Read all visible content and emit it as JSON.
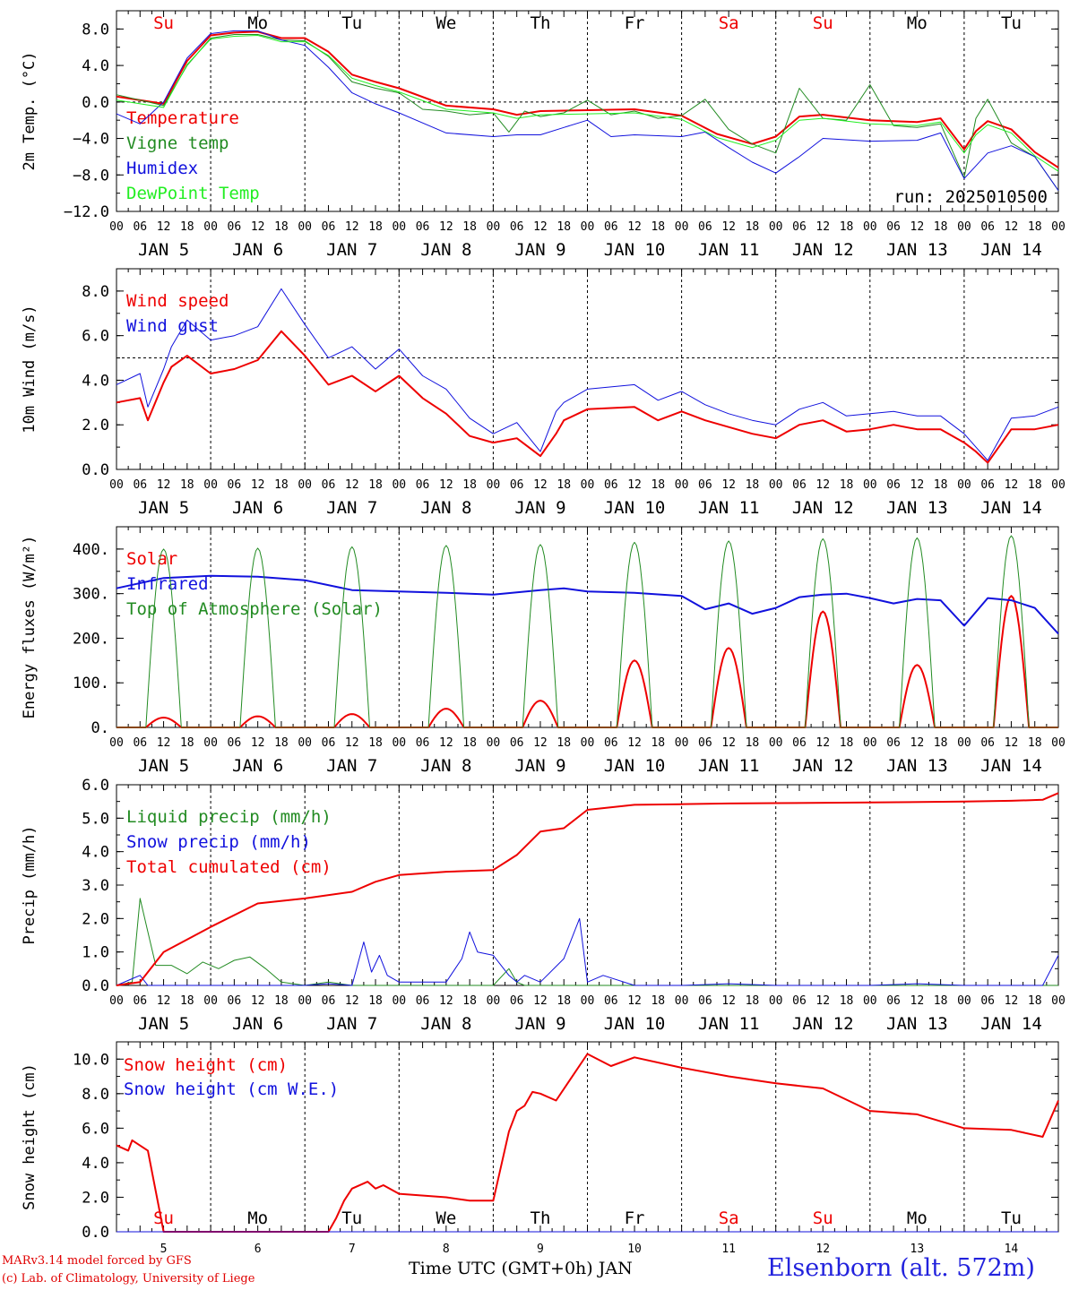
{
  "colors": {
    "red": "#ee0000",
    "green": "#228b22",
    "blue": "#1111dd",
    "lightgreen": "#22ee22",
    "weekend": "#ee0000",
    "weekday": "#000000"
  },
  "days": [
    {
      "abbr": "Su",
      "weekend": true,
      "date": "JAN  5",
      "num": "5"
    },
    {
      "abbr": "Mo",
      "weekend": false,
      "date": "JAN  6",
      "num": "6"
    },
    {
      "abbr": "Tu",
      "weekend": false,
      "date": "JAN  7",
      "num": "7"
    },
    {
      "abbr": "We",
      "weekend": false,
      "date": "JAN  8",
      "num": "8"
    },
    {
      "abbr": "Th",
      "weekend": false,
      "date": "JAN  9",
      "num": "9"
    },
    {
      "abbr": "Fr",
      "weekend": false,
      "date": "JAN 10",
      "num": "10"
    },
    {
      "abbr": "Sa",
      "weekend": true,
      "date": "JAN 11",
      "num": "11"
    },
    {
      "abbr": "Su",
      "weekend": true,
      "date": "JAN 12",
      "num": "12"
    },
    {
      "abbr": "Mo",
      "weekend": false,
      "date": "JAN 13",
      "num": "13"
    },
    {
      "abbr": "Tu",
      "weekend": false,
      "date": "JAN 14",
      "num": "14"
    }
  ],
  "hour_labels": [
    "00",
    "06",
    "12",
    "18"
  ],
  "footer": {
    "credit_line1": "MARv3.14 model forced by GFS",
    "credit_line2": "(c) Lab. of Climatology, University of Liege",
    "x_title": "Time UTC (GMT+0h) JAN",
    "station": "Elsenborn (alt. 572m)"
  },
  "chart_data": [
    {
      "type": "line",
      "ylabel": "2m Temp. (°C)",
      "ylim": [
        -12,
        10
      ],
      "yticks": [
        8,
        4,
        0,
        -4,
        -8,
        -12
      ],
      "ytick_labels": [
        "8.0",
        "4.0",
        "0.0",
        "−4.0",
        "−8.0",
        "−12.0"
      ],
      "ref_line": 0,
      "annotation": "run: 2025010500",
      "series": [
        {
          "name": "Temperature",
          "color": "red",
          "width": 2,
          "x": [
            0,
            12,
            18,
            24,
            30,
            36,
            42,
            48,
            54,
            60,
            66,
            72,
            84,
            96,
            102,
            108,
            120,
            132,
            144,
            153,
            162,
            168,
            174,
            180,
            192,
            204,
            210,
            216,
            219,
            222,
            228,
            234,
            240
          ],
          "y": [
            0.6,
            -0.2,
            4.5,
            7.3,
            7.6,
            7.7,
            7.0,
            7.0,
            5.5,
            3.0,
            2.2,
            1.5,
            -0.4,
            -0.8,
            -1.4,
            -1.0,
            -0.9,
            -0.8,
            -1.5,
            -3.5,
            -4.6,
            -3.8,
            -1.6,
            -1.4,
            -2.0,
            -2.2,
            -1.8,
            -5.2,
            -3.2,
            -2.1,
            -3.0,
            -5.5,
            -7.2
          ]
        },
        {
          "name": "Vigne temp",
          "color": "green",
          "width": 1,
          "x": [
            0,
            12,
            18,
            24,
            30,
            36,
            42,
            48,
            54,
            60,
            66,
            72,
            78,
            84,
            90,
            96,
            100,
            104,
            108,
            114,
            120,
            126,
            132,
            138,
            144,
            150,
            156,
            162,
            168,
            174,
            180,
            186,
            192,
            198,
            204,
            210,
            216,
            219,
            222,
            228,
            234,
            240
          ],
          "y": [
            0.8,
            -0.4,
            4.0,
            7.0,
            7.4,
            7.4,
            6.8,
            6.7,
            5.0,
            2.2,
            1.5,
            1.0,
            -0.8,
            -1.0,
            -1.4,
            -1.2,
            -3.3,
            -1.0,
            -1.6,
            -1.2,
            0.2,
            -1.4,
            -1.0,
            -1.8,
            -1.5,
            0.3,
            -3.0,
            -4.6,
            -5.6,
            1.5,
            -1.8,
            -2.0,
            1.9,
            -2.6,
            -2.8,
            -2.4,
            -8.3,
            -1.8,
            0.3,
            -4.5,
            -6.0,
            -9.7
          ]
        },
        {
          "name": "Humidex",
          "color": "blue",
          "width": 1,
          "x": [
            0,
            6,
            12,
            18,
            24,
            30,
            36,
            42,
            48,
            54,
            60,
            66,
            72,
            84,
            96,
            102,
            108,
            114,
            120,
            126,
            132,
            144,
            150,
            156,
            162,
            168,
            174,
            180,
            192,
            204,
            210,
            216,
            222,
            228,
            234,
            240
          ],
          "y": [
            -1.3,
            -2.4,
            0.0,
            4.8,
            7.5,
            7.8,
            7.8,
            6.8,
            6.2,
            3.8,
            1.0,
            -0.2,
            -1.2,
            -3.4,
            -3.8,
            -3.6,
            -3.6,
            -2.8,
            -2.0,
            -3.8,
            -3.6,
            -3.8,
            -3.3,
            -5.0,
            -6.6,
            -7.8,
            -6.0,
            -4.0,
            -4.3,
            -4.2,
            -3.4,
            -8.4,
            -5.6,
            -4.8,
            -6.0,
            -9.7
          ]
        }
      ]
    },
    {
      "type": "line",
      "ylabel": "10m Wind (m/s)",
      "ylim": [
        0,
        9.0
      ],
      "yticks": [
        8,
        6,
        4,
        2,
        0
      ],
      "ytick_labels": [
        "8.0",
        "6.0",
        "4.0",
        "2.0",
        "0.0"
      ],
      "ref_line": 5,
      "series": [
        {
          "name": "Wind speed",
          "color": "red",
          "width": 2,
          "x": [
            0,
            6,
            8,
            12,
            14,
            18,
            24,
            30,
            36,
            42,
            48,
            54,
            60,
            66,
            72,
            78,
            84,
            90,
            96,
            102,
            108,
            112,
            114,
            120,
            132,
            138,
            144,
            150,
            156,
            162,
            168,
            174,
            180,
            186,
            192,
            198,
            204,
            210,
            216,
            219,
            222,
            228,
            234,
            240
          ],
          "y": [
            3.0,
            3.2,
            2.2,
            3.9,
            4.6,
            5.1,
            4.3,
            4.5,
            4.9,
            6.2,
            5.1,
            3.8,
            4.2,
            3.5,
            4.2,
            3.2,
            2.5,
            1.5,
            1.2,
            1.4,
            0.6,
            1.6,
            2.2,
            2.7,
            2.8,
            2.2,
            2.6,
            2.2,
            1.9,
            1.6,
            1.4,
            2.0,
            2.2,
            1.7,
            1.8,
            2.0,
            1.8,
            1.8,
            1.2,
            0.8,
            0.3,
            1.8,
            1.8,
            2.0
          ]
        },
        {
          "name": "Wind gust",
          "color": "blue",
          "width": 1,
          "x": [
            0,
            6,
            8,
            12,
            14,
            18,
            24,
            30,
            36,
            42,
            48,
            54,
            60,
            66,
            72,
            78,
            84,
            90,
            96,
            102,
            108,
            112,
            114,
            120,
            132,
            138,
            144,
            150,
            156,
            162,
            168,
            174,
            180,
            186,
            192,
            198,
            204,
            210,
            216,
            219,
            222,
            228,
            234,
            240
          ],
          "y": [
            3.8,
            4.3,
            2.8,
            4.5,
            5.5,
            6.7,
            5.8,
            6.0,
            6.4,
            8.1,
            6.5,
            5.0,
            5.5,
            4.5,
            5.4,
            4.2,
            3.6,
            2.3,
            1.6,
            2.1,
            0.8,
            2.6,
            3.0,
            3.6,
            3.8,
            3.1,
            3.5,
            2.9,
            2.5,
            2.2,
            2.0,
            2.7,
            3.0,
            2.4,
            2.5,
            2.6,
            2.4,
            2.4,
            1.6,
            1.0,
            0.4,
            2.3,
            2.4,
            2.8
          ]
        }
      ]
    },
    {
      "type": "line",
      "ylabel": "Energy fluxes (W/m²)",
      "ylim": [
        0,
        450
      ],
      "yticks": [
        400,
        300,
        200,
        100,
        0
      ],
      "ytick_labels": [
        "400.",
        "300.",
        "200.",
        "100.",
        "0."
      ],
      "series": [
        {
          "name": "Solar",
          "color": "red",
          "width": 2,
          "peaks": [
            22,
            25,
            30,
            42,
            60,
            150,
            178,
            260,
            140,
            295
          ]
        },
        {
          "name": "Infrared",
          "color": "blue",
          "width": 2,
          "x": [
            0,
            12,
            24,
            36,
            48,
            60,
            72,
            84,
            96,
            108,
            114,
            120,
            132,
            144,
            150,
            156,
            162,
            168,
            174,
            180,
            186,
            192,
            198,
            204,
            210,
            216,
            222,
            228,
            234,
            240
          ],
          "y": [
            312,
            335,
            340,
            338,
            330,
            308,
            305,
            302,
            298,
            308,
            312,
            305,
            302,
            295,
            265,
            278,
            255,
            268,
            292,
            298,
            300,
            290,
            278,
            288,
            285,
            228,
            290,
            285,
            268,
            210
          ]
        },
        {
          "name": "Top of Atmosphere (Solar)",
          "color": "green",
          "width": 1,
          "peaks": [
            400,
            402,
            405,
            408,
            410,
            415,
            418,
            423,
            425,
            430
          ]
        }
      ]
    },
    {
      "type": "line",
      "ylabel": "Precip (mm/h)",
      "ylim": [
        0,
        6.0
      ],
      "yticks": [
        6,
        5,
        4,
        3,
        2,
        1,
        0
      ],
      "ytick_labels": [
        "6.0",
        "5.0",
        "4.0",
        "3.0",
        "2.0",
        "1.0",
        "0.0"
      ],
      "series": [
        {
          "name": "Liquid precip (mm/h)",
          "color": "green",
          "width": 1,
          "x": [
            0,
            4,
            6,
            8,
            10,
            14,
            18,
            22,
            26,
            30,
            34,
            38,
            42,
            48,
            54,
            60,
            72,
            96,
            100,
            102,
            104,
            108,
            120,
            240
          ],
          "y": [
            0,
            0.1,
            2.6,
            1.6,
            0.6,
            0.6,
            0.35,
            0.7,
            0.5,
            0.75,
            0.85,
            0.5,
            0.1,
            0,
            0.1,
            0,
            0,
            0,
            0.5,
            0.1,
            0,
            0,
            0,
            0
          ]
        },
        {
          "name": "Snow precip (mm/h)",
          "color": "blue",
          "width": 1,
          "x": [
            0,
            4,
            6,
            8,
            48,
            54,
            60,
            63,
            65,
            67,
            69,
            72,
            84,
            88,
            90,
            92,
            96,
            100,
            102,
            104,
            108,
            114,
            118,
            120,
            124,
            132,
            144,
            156,
            168,
            192,
            204,
            216,
            236,
            240
          ],
          "y": [
            0,
            0.2,
            0.3,
            0,
            0,
            0.05,
            0,
            1.3,
            0.4,
            0.9,
            0.3,
            0.1,
            0.1,
            0.8,
            1.6,
            1.0,
            0.9,
            0.3,
            0.1,
            0.3,
            0.1,
            0.8,
            2.0,
            0.1,
            0.3,
            0,
            0,
            0.05,
            0,
            0,
            0.05,
            0,
            0,
            0.9
          ]
        },
        {
          "name": "Total cumulated (cm)",
          "color": "red",
          "width": 2,
          "x": [
            0,
            6,
            12,
            24,
            36,
            48,
            60,
            66,
            72,
            84,
            96,
            102,
            108,
            114,
            120,
            132,
            144,
            156,
            168,
            192,
            216,
            228,
            236,
            240
          ],
          "y": [
            0,
            0.1,
            1.0,
            1.75,
            2.45,
            2.6,
            2.8,
            3.1,
            3.3,
            3.4,
            3.45,
            3.9,
            4.6,
            4.7,
            5.25,
            5.4,
            5.42,
            5.44,
            5.45,
            5.47,
            5.5,
            5.52,
            5.55,
            5.75
          ]
        }
      ]
    },
    {
      "type": "line",
      "ylabel": "Snow height (cm)",
      "ylim": [
        0,
        11.0
      ],
      "yticks": [
        10,
        8,
        6,
        4,
        2,
        0
      ],
      "ytick_labels": [
        "10.0",
        "8.0",
        "6.0",
        "4.0",
        "2.0",
        "0.0"
      ],
      "series": [
        {
          "name": "Snow height (cm)",
          "color": "red",
          "width": 2,
          "x": [
            0,
            3,
            4,
            8,
            12,
            24,
            36,
            48,
            54,
            56,
            58,
            60,
            64,
            66,
            68,
            72,
            84,
            90,
            96,
            100,
            102,
            104,
            106,
            108,
            112,
            120,
            126,
            132,
            144,
            156,
            168,
            180,
            192,
            204,
            216,
            228,
            236,
            240
          ],
          "y": [
            5.0,
            4.7,
            5.3,
            4.7,
            0.0,
            0.0,
            0.0,
            0.0,
            0.0,
            0.8,
            1.8,
            2.5,
            2.9,
            2.5,
            2.7,
            2.2,
            2.0,
            1.8,
            1.8,
            5.8,
            7.0,
            7.3,
            8.1,
            8.0,
            7.6,
            10.3,
            9.6,
            10.1,
            9.5,
            9.0,
            8.6,
            8.3,
            7.0,
            6.8,
            6.0,
            5.9,
            5.5,
            7.6
          ]
        },
        {
          "name": "Snow height (cm W.E.)",
          "color": "blue",
          "width": 1,
          "x": [
            0,
            240
          ],
          "y": [
            0,
            0
          ]
        }
      ]
    }
  ]
}
